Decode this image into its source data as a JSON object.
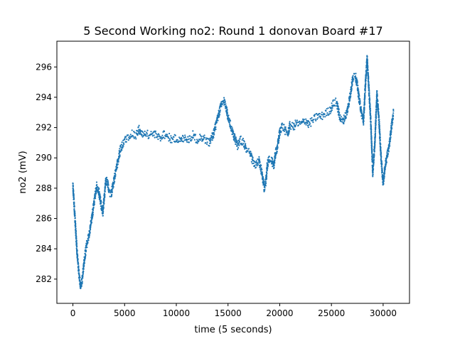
{
  "chart_data": {
    "type": "scatter",
    "title": "5 Second Working no2: Round 1 donovan Board #17",
    "xlabel": "time (5 seconds)",
    "ylabel": "no2 (mV)",
    "xlim": [
      -1550,
      32550
    ],
    "ylim": [
      280.4,
      297.7
    ],
    "xticks": [
      0,
      5000,
      10000,
      15000,
      20000,
      25000,
      30000
    ],
    "yticks": [
      282,
      284,
      286,
      288,
      290,
      292,
      294,
      296
    ],
    "grid": false,
    "marker_color": "#1f77b4",
    "series": [
      {
        "x": [
          0,
          200,
          400,
          600,
          750,
          900,
          1100,
          1300,
          1600,
          2000,
          2300,
          2500,
          2700,
          2900,
          3200,
          3400,
          3500,
          3700,
          4000,
          4300,
          4600,
          4900,
          5200,
          5500,
          5800,
          6100,
          6400,
          6700,
          7000,
          7300,
          7600,
          8000,
          8400,
          8800,
          9200,
          9600,
          10000,
          10400,
          10800,
          11200,
          11600,
          12000,
          12400,
          12800,
          13200,
          13600,
          14000,
          14300,
          14600,
          14800,
          15000,
          15300,
          15600,
          15900,
          16200,
          16500,
          16800,
          17100,
          17400,
          17700,
          18000,
          18300,
          18500,
          18650,
          18800,
          19000,
          19200,
          19400,
          19600,
          19800,
          20000,
          20200,
          20400,
          20600,
          20800,
          21000,
          21300,
          21600,
          21900,
          22200,
          22500,
          22800,
          23100,
          23400,
          23700,
          24000,
          24300,
          24600,
          24900,
          25200,
          25500,
          25700,
          25900,
          26100,
          26300,
          26500,
          26700,
          26900,
          27100,
          27300,
          27500,
          27700,
          27900,
          28100,
          28300,
          28450,
          28600,
          28800,
          29000,
          29200,
          29400,
          29600,
          29800,
          30000,
          30200,
          30400,
          30600,
          30800,
          31000
        ],
        "y": [
          288.2,
          286.0,
          283.8,
          282.2,
          281.5,
          282.0,
          283.2,
          284.2,
          285.0,
          286.8,
          288.2,
          287.8,
          287.0,
          286.4,
          288.6,
          288.2,
          287.8,
          287.6,
          288.6,
          289.6,
          290.6,
          291.0,
          291.3,
          291.5,
          291.6,
          291.5,
          291.9,
          291.5,
          291.7,
          291.5,
          291.6,
          291.5,
          291.3,
          291.6,
          291.4,
          291.2,
          291.3,
          291.1,
          291.4,
          291.2,
          291.5,
          291.2,
          291.4,
          291.2,
          291.0,
          291.6,
          292.6,
          293.4,
          293.8,
          293.4,
          292.7,
          292.0,
          291.4,
          290.8,
          291.2,
          291.0,
          290.5,
          290.3,
          289.8,
          289.5,
          289.8,
          288.9,
          288.0,
          288.4,
          289.5,
          290.0,
          289.9,
          289.4,
          290.3,
          290.8,
          291.7,
          292.1,
          292.0,
          291.7,
          291.6,
          292.2,
          292.0,
          292.3,
          292.2,
          292.3,
          292.5,
          292.2,
          292.4,
          292.6,
          292.8,
          292.7,
          292.9,
          293.0,
          293.2,
          293.6,
          293.7,
          293.0,
          292.5,
          292.4,
          292.7,
          293.0,
          293.7,
          294.5,
          295.4,
          295.5,
          294.8,
          293.8,
          293.0,
          292.4,
          295.0,
          296.6,
          294.8,
          292.5,
          289.0,
          291.0,
          294.2,
          292.5,
          290.0,
          288.3,
          289.5,
          290.2,
          290.8,
          292.0,
          293.0
        ]
      }
    ]
  }
}
